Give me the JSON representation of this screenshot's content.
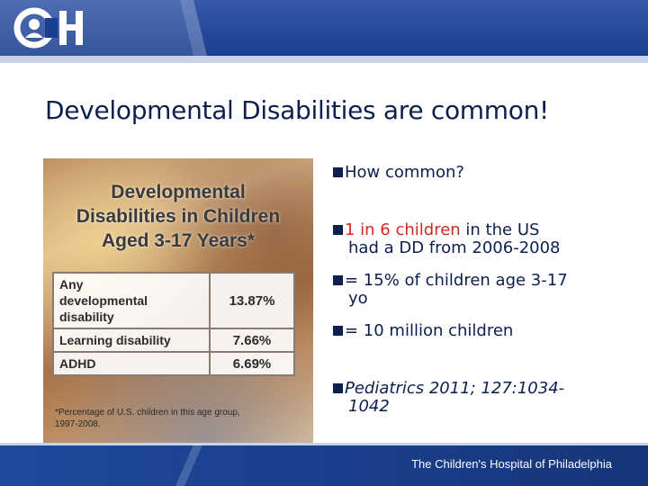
{
  "header": {
    "logo_text": "CH"
  },
  "slide": {
    "title": "Developmental Disabilities are common!"
  },
  "panel": {
    "title_line1": "Developmental",
    "title_line2": "Disabilities in Children",
    "title_line3": "Aged 3-17 Years*",
    "rows": [
      {
        "label_line1": "Any",
        "label_line2": "developmental",
        "label_line3": "disability",
        "value": "13.87%"
      },
      {
        "label": "Learning disability",
        "value": "7.66%"
      },
      {
        "label": "ADHD",
        "value": "6.69%"
      }
    ],
    "footnote_line1": "*Percentage of U.S. children in this age group,",
    "footnote_line2": "1997-2008."
  },
  "bullets": {
    "b1": "How common?",
    "b2_red": "1 in 6 children",
    "b2_rest": " in the US",
    "b2_line2": "had a DD from 2006-2008",
    "b3_line1": "= 15% of children age 3-17",
    "b3_line2": "yo",
    "b4": "= 10 million children",
    "b5_line1": "Pediatrics 2011; 127:1034-",
    "b5_line2": "1042"
  },
  "footer": {
    "text": "The Children's Hospital of Philadelphia"
  },
  "colors": {
    "header_blue": "#1b3f8f",
    "title_navy": "#0d1f4f",
    "highlight_red": "#d8271f"
  }
}
